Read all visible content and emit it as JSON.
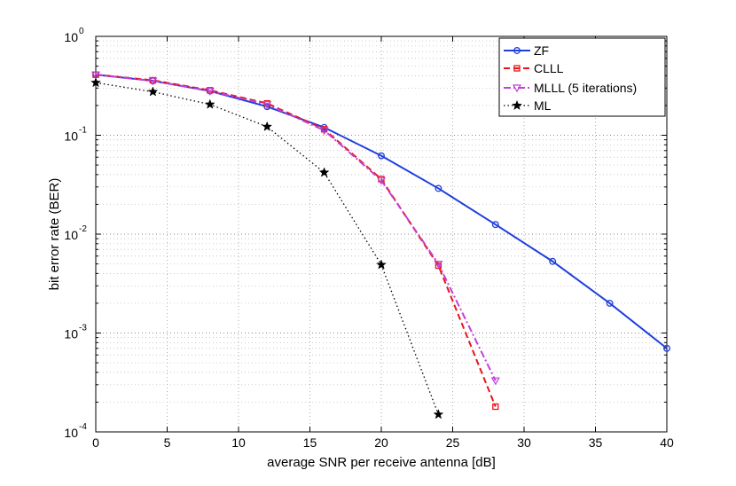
{
  "chart_data": {
    "type": "line",
    "title": "",
    "xlabel": "average SNR per receive antenna [dB]",
    "ylabel": "bit error rate (BER)",
    "xlim": [
      0,
      40
    ],
    "ylim": [
      0.0001,
      1
    ],
    "yscale": "log",
    "grid": true,
    "legend_position": "top-right",
    "xticks": [
      0,
      5,
      10,
      15,
      20,
      25,
      30,
      35,
      40
    ],
    "yticks": [
      {
        "value": 1,
        "base": "10",
        "exp": "0"
      },
      {
        "value": 0.1,
        "base": "10",
        "exp": "-1"
      },
      {
        "value": 0.01,
        "base": "10",
        "exp": "-2"
      },
      {
        "value": 0.001,
        "base": "10",
        "exp": "-3"
      },
      {
        "value": 0.0001,
        "base": "10",
        "exp": "-4"
      }
    ],
    "series": [
      {
        "name": "ZF",
        "color": "#1f3fdc",
        "line_style": "solid",
        "marker": "circle",
        "x": [
          0,
          4,
          8,
          12,
          16,
          20,
          24,
          28,
          32,
          36,
          40
        ],
        "values": [
          0.41,
          0.355,
          0.28,
          0.195,
          0.12,
          0.062,
          0.029,
          0.0125,
          0.0053,
          0.002,
          0.0007
        ]
      },
      {
        "name": "CLLL",
        "color": "#e8141a",
        "line_style": "dashed",
        "marker": "square",
        "x": [
          0,
          4,
          8,
          12,
          16,
          20,
          24,
          28
        ],
        "values": [
          0.41,
          0.36,
          0.285,
          0.21,
          0.115,
          0.036,
          0.0048,
          0.00018
        ]
      },
      {
        "name": "MLLL (5 iterations)",
        "color": "#c23fd8",
        "line_style": "dashdot",
        "marker": "triangle-down",
        "x": [
          0,
          4,
          8,
          12,
          16,
          20,
          24,
          28
        ],
        "values": [
          0.41,
          0.355,
          0.28,
          0.205,
          0.112,
          0.035,
          0.005,
          0.00033
        ]
      },
      {
        "name": "ML",
        "color": "#000000",
        "line_style": "dotted",
        "marker": "star",
        "x": [
          0,
          4,
          8,
          12,
          16,
          20,
          24
        ],
        "values": [
          0.34,
          0.275,
          0.205,
          0.122,
          0.042,
          0.0049,
          0.00015
        ]
      }
    ]
  }
}
